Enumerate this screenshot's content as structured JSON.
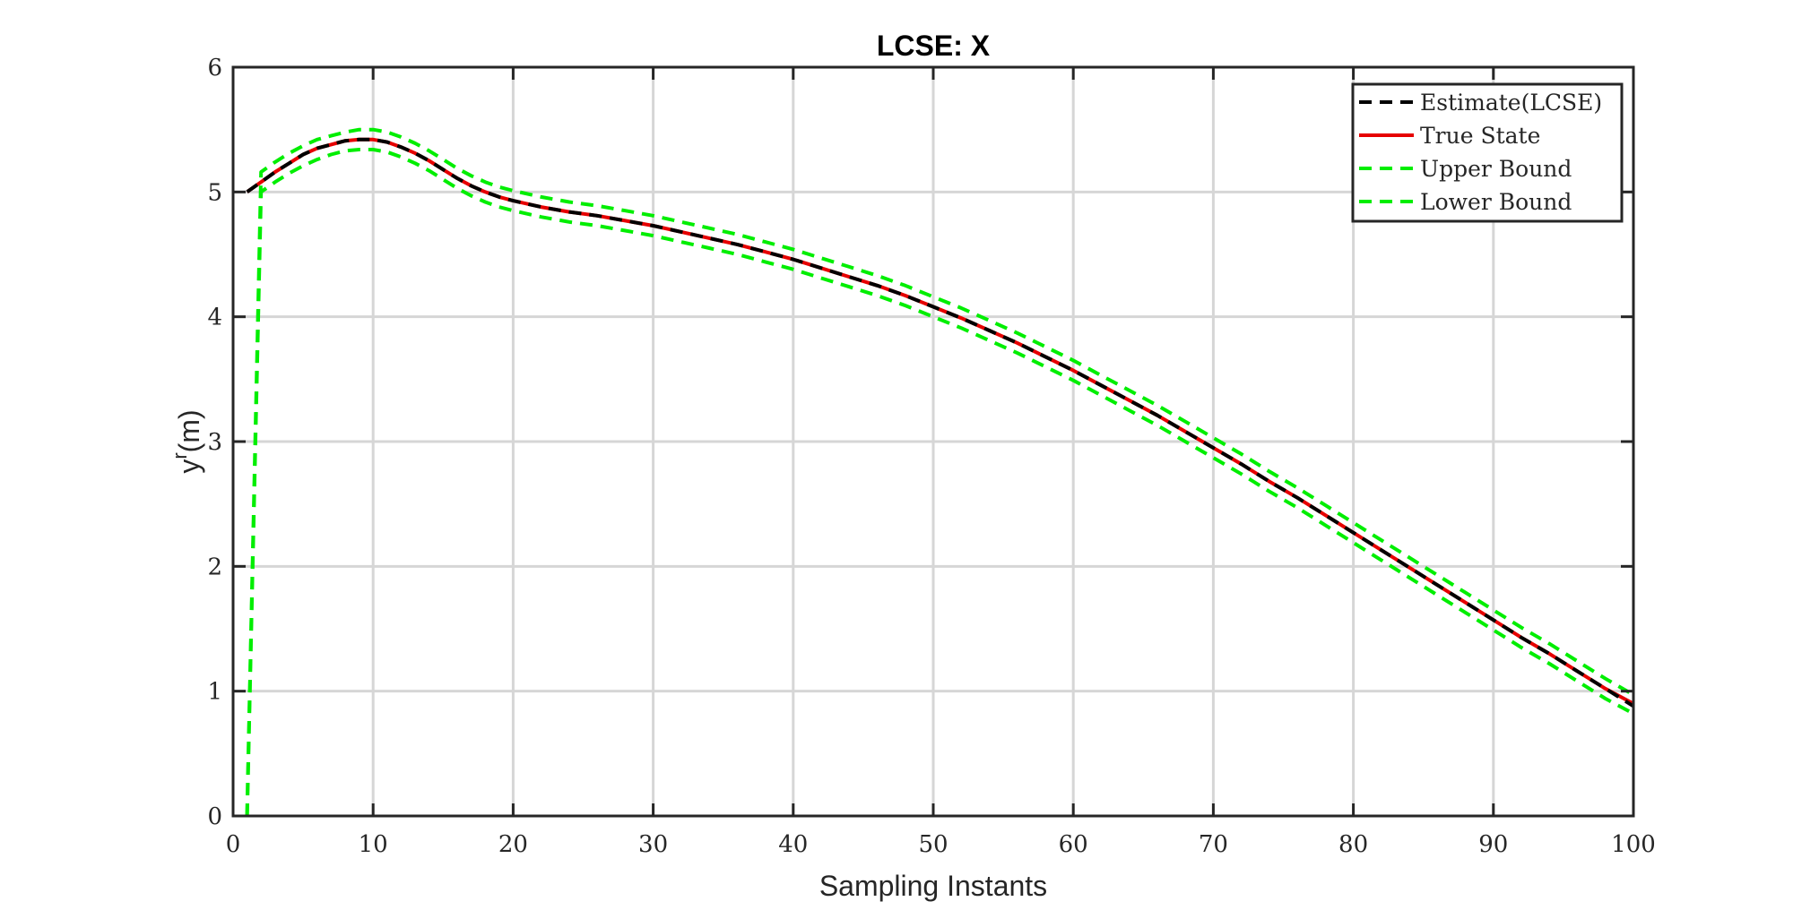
{
  "chart_data": {
    "type": "line",
    "title": "LCSE: X",
    "xlabel": "Sampling Instants",
    "ylabel_base": "y",
    "ylabel_sup": "r",
    "ylabel_unit": "(m)",
    "xlim": [
      0,
      100
    ],
    "ylim": [
      0,
      6
    ],
    "xticks": [
      0,
      10,
      20,
      30,
      40,
      50,
      60,
      70,
      80,
      90,
      100
    ],
    "yticks": [
      0,
      1,
      2,
      3,
      4,
      5,
      6
    ],
    "grid": true,
    "legend_position": "top-right",
    "series": [
      {
        "name": "Estimate(LCSE)",
        "color": "#000000",
        "style": "dashed",
        "x": [
          1,
          2,
          3,
          4,
          5,
          6,
          7,
          8,
          9,
          10,
          11,
          12,
          13,
          14,
          15,
          16,
          17,
          18,
          19,
          20,
          22,
          24,
          26,
          28,
          30,
          32,
          34,
          36,
          38,
          40,
          42,
          44,
          46,
          48,
          50,
          52,
          54,
          56,
          58,
          60,
          62,
          64,
          66,
          68,
          70,
          72,
          74,
          76,
          78,
          80,
          82,
          84,
          86,
          88,
          90,
          92,
          94,
          96,
          98,
          100
        ],
        "y": [
          5.0,
          5.08,
          5.16,
          5.23,
          5.3,
          5.35,
          5.38,
          5.41,
          5.42,
          5.42,
          5.4,
          5.36,
          5.31,
          5.25,
          5.18,
          5.11,
          5.05,
          5.0,
          4.96,
          4.93,
          4.88,
          4.84,
          4.81,
          4.77,
          4.73,
          4.68,
          4.63,
          4.58,
          4.52,
          4.46,
          4.39,
          4.32,
          4.25,
          4.17,
          4.08,
          3.99,
          3.89,
          3.79,
          3.68,
          3.57,
          3.45,
          3.33,
          3.21,
          3.08,
          2.95,
          2.82,
          2.68,
          2.55,
          2.41,
          2.27,
          2.13,
          1.99,
          1.85,
          1.71,
          1.57,
          1.43,
          1.3,
          1.16,
          1.02,
          0.88
        ]
      },
      {
        "name": "True State",
        "color": "#e60000",
        "style": "solid",
        "x": [
          1,
          2,
          3,
          4,
          5,
          6,
          7,
          8,
          9,
          10,
          11,
          12,
          13,
          14,
          15,
          16,
          17,
          18,
          19,
          20,
          22,
          24,
          26,
          28,
          30,
          32,
          34,
          36,
          38,
          40,
          42,
          44,
          46,
          48,
          50,
          52,
          54,
          56,
          58,
          60,
          62,
          64,
          66,
          68,
          70,
          72,
          74,
          76,
          78,
          80,
          82,
          84,
          86,
          88,
          90,
          92,
          94,
          96,
          98,
          100
        ],
        "y": [
          5.0,
          5.08,
          5.16,
          5.23,
          5.3,
          5.35,
          5.38,
          5.41,
          5.42,
          5.42,
          5.4,
          5.36,
          5.31,
          5.25,
          5.18,
          5.11,
          5.05,
          5.0,
          4.96,
          4.93,
          4.88,
          4.84,
          4.81,
          4.77,
          4.73,
          4.68,
          4.63,
          4.58,
          4.52,
          4.46,
          4.39,
          4.32,
          4.25,
          4.17,
          4.08,
          3.99,
          3.89,
          3.79,
          3.68,
          3.57,
          3.45,
          3.33,
          3.21,
          3.08,
          2.95,
          2.82,
          2.68,
          2.55,
          2.41,
          2.27,
          2.13,
          1.99,
          1.85,
          1.71,
          1.57,
          1.43,
          1.3,
          1.16,
          1.02,
          0.9
        ]
      },
      {
        "name": "Upper Bound",
        "color": "#00ee00",
        "style": "dashed",
        "x": [
          1,
          2,
          3,
          4,
          5,
          6,
          7,
          8,
          9,
          10,
          11,
          12,
          13,
          14,
          15,
          16,
          17,
          18,
          19,
          20,
          22,
          24,
          26,
          28,
          30,
          32,
          34,
          36,
          38,
          40,
          42,
          44,
          46,
          48,
          50,
          52,
          54,
          56,
          58,
          60,
          62,
          64,
          66,
          68,
          70,
          72,
          74,
          76,
          78,
          80,
          82,
          84,
          86,
          88,
          90,
          92,
          94,
          96,
          98,
          100
        ],
        "y": [
          0.0,
          5.16,
          5.24,
          5.31,
          5.37,
          5.42,
          5.45,
          5.48,
          5.5,
          5.5,
          5.48,
          5.44,
          5.39,
          5.33,
          5.26,
          5.19,
          5.13,
          5.08,
          5.04,
          5.01,
          4.96,
          4.92,
          4.89,
          4.85,
          4.81,
          4.76,
          4.71,
          4.66,
          4.6,
          4.54,
          4.47,
          4.4,
          4.33,
          4.25,
          4.16,
          4.07,
          3.97,
          3.87,
          3.76,
          3.65,
          3.53,
          3.41,
          3.29,
          3.16,
          3.03,
          2.9,
          2.76,
          2.63,
          2.49,
          2.35,
          2.21,
          2.07,
          1.93,
          1.79,
          1.65,
          1.51,
          1.38,
          1.24,
          1.1,
          0.97
        ]
      },
      {
        "name": "Lower Bound",
        "color": "#00ee00",
        "style": "dashed",
        "x": [
          1,
          2,
          3,
          4,
          5,
          6,
          7,
          8,
          9,
          10,
          11,
          12,
          13,
          14,
          15,
          16,
          17,
          18,
          19,
          20,
          22,
          24,
          26,
          28,
          30,
          32,
          34,
          36,
          38,
          40,
          42,
          44,
          46,
          48,
          50,
          52,
          54,
          56,
          58,
          60,
          62,
          64,
          66,
          68,
          70,
          72,
          74,
          76,
          78,
          80,
          82,
          84,
          86,
          88,
          90,
          92,
          94,
          96,
          98,
          100
        ],
        "y": [
          0.0,
          5.0,
          5.08,
          5.15,
          5.21,
          5.26,
          5.3,
          5.33,
          5.34,
          5.34,
          5.32,
          5.28,
          5.23,
          5.17,
          5.1,
          5.03,
          4.97,
          4.92,
          4.88,
          4.85,
          4.8,
          4.76,
          4.73,
          4.69,
          4.65,
          4.6,
          4.55,
          4.5,
          4.44,
          4.38,
          4.31,
          4.24,
          4.17,
          4.09,
          4.0,
          3.91,
          3.81,
          3.71,
          3.6,
          3.49,
          3.37,
          3.25,
          3.13,
          3.0,
          2.87,
          2.74,
          2.6,
          2.47,
          2.33,
          2.19,
          2.05,
          1.91,
          1.77,
          1.63,
          1.49,
          1.35,
          1.22,
          1.08,
          0.94,
          0.82
        ]
      }
    ]
  }
}
